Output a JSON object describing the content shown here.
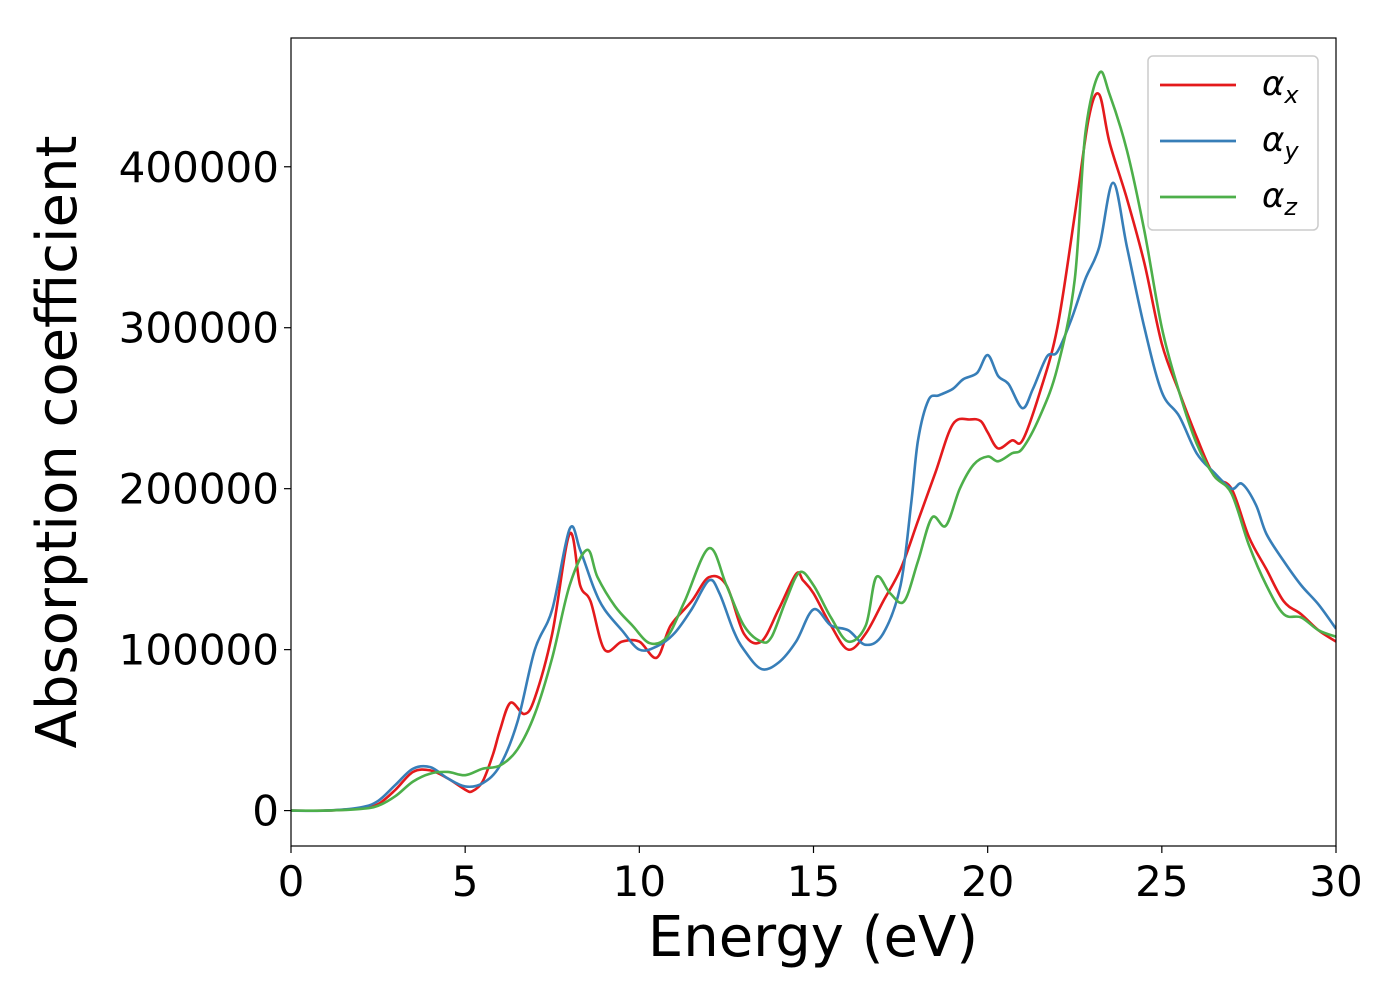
{
  "chart_data": {
    "type": "line",
    "title": "",
    "xlabel": "Energy (eV)",
    "ylabel": "Absorption coefficient",
    "xlim": [
      0,
      30
    ],
    "ylim": [
      -22000,
      480000
    ],
    "xticks": [
      0,
      5,
      10,
      15,
      20,
      25,
      30
    ],
    "xtick_labels": [
      "0",
      "5",
      "10",
      "15",
      "20",
      "25",
      "30"
    ],
    "yticks": [
      0,
      100000,
      200000,
      300000,
      400000
    ],
    "ytick_labels": [
      "0",
      "100000",
      "200000",
      "300000",
      "400000"
    ],
    "grid": false,
    "legend_position": "top-right",
    "series": [
      {
        "name": "α",
        "subscript": "x",
        "color": "#e41a1c",
        "x": [
          0,
          1,
          2,
          2.5,
          3,
          3.5,
          4,
          4.5,
          5,
          5.2,
          5.5,
          5.8,
          6,
          6.3,
          6.7,
          7,
          7.5,
          8,
          8.3,
          8.6,
          9,
          9.5,
          10,
          10.5,
          10.9,
          11.5,
          12,
          12.5,
          13,
          13.5,
          14,
          14.5,
          14.7,
          15,
          15.5,
          16,
          16.5,
          17,
          17.5,
          18,
          18.5,
          19,
          19.5,
          19.8,
          20,
          20.3,
          20.7,
          21,
          21.5,
          22,
          22.5,
          22.9,
          23.2,
          23.5,
          24,
          24.5,
          25,
          25.5,
          26,
          26.5,
          27,
          27.5,
          28,
          28.5,
          29,
          29.5,
          30
        ],
        "y": [
          0,
          0,
          1500,
          4000,
          13000,
          24000,
          25000,
          20000,
          13000,
          12000,
          18000,
          35000,
          50000,
          67000,
          60000,
          70000,
          110000,
          172000,
          140000,
          130000,
          100000,
          105000,
          105000,
          95000,
          115000,
          130000,
          145000,
          140000,
          110000,
          105000,
          125000,
          147000,
          143000,
          135000,
          115000,
          100000,
          110000,
          130000,
          150000,
          180000,
          210000,
          240000,
          243000,
          242000,
          235000,
          225000,
          230000,
          230000,
          260000,
          300000,
          370000,
          430000,
          445000,
          415000,
          380000,
          340000,
          290000,
          260000,
          232000,
          208000,
          200000,
          170000,
          150000,
          130000,
          122000,
          112000,
          105000
        ]
      },
      {
        "name": "α",
        "subscript": "y",
        "color": "#377eb8",
        "x": [
          0,
          1,
          2,
          2.5,
          3,
          3.5,
          4,
          4.5,
          5,
          5.5,
          6,
          6.5,
          7,
          7.5,
          8,
          8.3,
          8.7,
          9,
          9.5,
          10,
          10.5,
          11,
          11.5,
          12,
          12.3,
          12.7,
          13,
          13.5,
          14,
          14.5,
          15,
          15.5,
          16,
          16.5,
          17,
          17.5,
          17.8,
          18,
          18.3,
          18.6,
          19,
          19.3,
          19.7,
          20,
          20.3,
          20.6,
          21,
          21.3,
          21.7,
          22,
          22.4,
          22.8,
          23.2,
          23.6,
          24,
          24.5,
          25,
          25.5,
          26,
          26.5,
          27,
          27.3,
          27.7,
          28,
          28.5,
          29,
          29.5,
          30
        ],
        "y": [
          0,
          0,
          2000,
          6000,
          16000,
          26000,
          27000,
          20000,
          15000,
          17000,
          28000,
          55000,
          100000,
          125000,
          175000,
          162000,
          138000,
          125000,
          112000,
          100000,
          102000,
          110000,
          125000,
          143000,
          135000,
          112000,
          100000,
          88000,
          92000,
          105000,
          125000,
          115000,
          112000,
          103000,
          110000,
          140000,
          190000,
          230000,
          255000,
          258000,
          262000,
          268000,
          272000,
          283000,
          270000,
          265000,
          250000,
          262000,
          282000,
          285000,
          305000,
          330000,
          350000,
          390000,
          350000,
          300000,
          260000,
          245000,
          222000,
          210000,
          200000,
          203000,
          190000,
          172000,
          155000,
          140000,
          128000,
          113000
        ]
      },
      {
        "name": "α",
        "subscript": "z",
        "color": "#4daf4a",
        "x": [
          0,
          1,
          2,
          2.5,
          3,
          3.5,
          4,
          4.5,
          5,
          5.5,
          6,
          6.5,
          7,
          7.5,
          8,
          8.5,
          8.8,
          9.3,
          9.8,
          10.3,
          10.8,
          11.3,
          12,
          12.5,
          13,
          13.5,
          13.8,
          14.2,
          14.6,
          15,
          15.5,
          16,
          16.5,
          16.8,
          17.2,
          17.6,
          18,
          18.4,
          18.8,
          19.2,
          19.6,
          20,
          20.3,
          20.7,
          21,
          21.5,
          22,
          22.5,
          22.8,
          23.2,
          23.5,
          24,
          24.5,
          25,
          25.5,
          26,
          26.5,
          27,
          27.5,
          28,
          28.5,
          29,
          29.5,
          30
        ],
        "y": [
          0,
          0,
          1000,
          3000,
          9000,
          18000,
          23000,
          24000,
          22000,
          26000,
          28000,
          38000,
          60000,
          95000,
          140000,
          162000,
          145000,
          127000,
          115000,
          104000,
          108000,
          130000,
          163000,
          140000,
          115000,
          105000,
          108000,
          130000,
          148000,
          140000,
          120000,
          105000,
          115000,
          145000,
          135000,
          130000,
          155000,
          182000,
          177000,
          200000,
          215000,
          220000,
          217000,
          222000,
          225000,
          245000,
          275000,
          330000,
          420000,
          458000,
          445000,
          410000,
          360000,
          300000,
          260000,
          228000,
          208000,
          197000,
          165000,
          140000,
          122000,
          120000,
          112000,
          108000
        ]
      }
    ]
  }
}
